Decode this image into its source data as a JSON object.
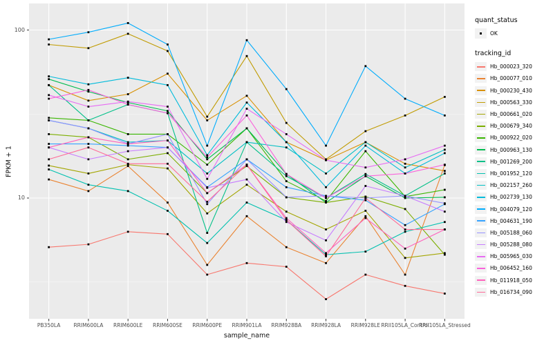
{
  "figure": {
    "background": "#FFFFFF",
    "panel_background": "#EBEBEB",
    "grid_color": "#FFFFFF",
    "tick_color": "#333333",
    "axis_text_color": "#4D4D4D",
    "point_color": "#000000"
  },
  "axes": {
    "x_label": "sample_name",
    "y_label": "FPKM + 1",
    "y_ticks": [
      "100",
      "10"
    ]
  },
  "legend": {
    "quant_status_title": "quant_status",
    "ok_label": "OK",
    "ok_marker": "black-square",
    "tracking_title": "tracking_id"
  },
  "chart_data": {
    "type": "line",
    "title": "",
    "xlabel": "sample_name",
    "ylabel": "FPKM + 1",
    "x_scale": "categorical",
    "y_scale": "log10",
    "ylim": [
      2.3,
      120
    ],
    "y_major": [
      100,
      10
    ],
    "y_minor": [
      31.62,
      3.162
    ],
    "grid": "on",
    "legend_position": "right",
    "marker": "black-square",
    "categories": [
      "PB350LA",
      "RRIM600LA",
      "RRIM600LE",
      "RRIM600SE",
      "RRIM600PE",
      "RRIM901LA",
      "RRIM928BA",
      "RRIM928LA",
      "RRIM928LE",
      "RRII105LA_Control",
      "RRII105LA_Stressed"
    ],
    "series": [
      {
        "name": "Hb_000023_320",
        "color": "#F8766D",
        "values": [
          5.1,
          5.3,
          6.3,
          6.1,
          3.5,
          4.1,
          3.9,
          2.5,
          3.5,
          3.0,
          2.7
        ]
      },
      {
        "name": "Hb_000077_010",
        "color": "#EA8331",
        "values": [
          12.9,
          11.0,
          15.5,
          9.4,
          4.0,
          7.8,
          5.1,
          4.1,
          7.8,
          3.5,
          15.7
        ]
      },
      {
        "name": "Hb_000230_430",
        "color": "#D89000",
        "values": [
          47,
          38,
          41.5,
          55,
          29,
          40.6,
          21.5,
          16.8,
          21.5,
          16,
          14.5
        ]
      },
      {
        "name": "Hb_000563_330",
        "color": "#C09B00",
        "values": [
          82,
          78,
          95,
          75,
          30.5,
          70,
          28,
          17,
          25,
          31,
          40
        ]
      },
      {
        "name": "Hb_000661_020",
        "color": "#A3A500",
        "values": [
          15.6,
          14,
          15.8,
          15,
          8.1,
          12,
          8.3,
          6.5,
          8.4,
          4.4,
          4.7
        ]
      },
      {
        "name": "Hb_000679_340",
        "color": "#7CAE00",
        "values": [
          24,
          23,
          17,
          18.5,
          10.7,
          15.5,
          10.1,
          9.4,
          10.2,
          8.6,
          4.6
        ]
      },
      {
        "name": "Hb_000922_020",
        "color": "#39B600",
        "values": [
          30,
          29,
          24,
          24,
          15.8,
          26,
          12.6,
          9.6,
          19,
          10.2,
          11.2
        ]
      },
      {
        "name": "Hb_000963_130",
        "color": "#00BB4E",
        "values": [
          51,
          43,
          37,
          33,
          17,
          26,
          13.9,
          9.4,
          13.5,
          10,
          10.1
        ]
      },
      {
        "name": "Hb_001269_200",
        "color": "#00C087",
        "values": [
          47,
          29,
          36,
          32,
          6.2,
          21.5,
          13.5,
          10,
          13.9,
          10.3,
          14
        ]
      },
      {
        "name": "Hb_001952_120",
        "color": "#00C0AF",
        "values": [
          14.8,
          12,
          11,
          8.4,
          5.4,
          9.4,
          7.4,
          4.6,
          4.8,
          6.3,
          7.2
        ]
      },
      {
        "name": "Hb_002157_260",
        "color": "#00BFC4",
        "values": [
          29,
          26,
          21.5,
          22,
          14,
          21.5,
          20,
          14,
          21.5,
          15.2,
          19.4
        ]
      },
      {
        "name": "Hb_002739_130",
        "color": "#00BBDB",
        "values": [
          53,
          47.5,
          52,
          47,
          18,
          37,
          21.5,
          11.6,
          20.5,
          14,
          18.5
        ]
      },
      {
        "name": "Hb_004079_120",
        "color": "#00ACFC",
        "values": [
          88,
          97,
          110,
          82,
          20.5,
          87,
          44.5,
          20.5,
          61,
          39,
          31
        ]
      },
      {
        "name": "Hb_004631_190",
        "color": "#35A2FF",
        "values": [
          21,
          21,
          20.5,
          20,
          11.6,
          17,
          11.6,
          10.3,
          9.7,
          6.9,
          9.2
        ]
      },
      {
        "name": "Hb_005188_060",
        "color": "#9590FF",
        "values": [
          29,
          26,
          21,
          24,
          9.2,
          17,
          10.1,
          10.3,
          10,
          10.3,
          9.3
        ]
      },
      {
        "name": "Hb_005288_080",
        "color": "#C77CFF",
        "values": [
          20,
          17,
          19,
          20,
          11.5,
          12.9,
          7.2,
          5.6,
          11.8,
          10.3,
          8.3
        ]
      },
      {
        "name": "Hb_005965_030",
        "color": "#E76BF3",
        "values": [
          41,
          35,
          37.5,
          35,
          13,
          34,
          24,
          16.8,
          15.2,
          17,
          20.5
        ]
      },
      {
        "name": "Hb_006452_160",
        "color": "#FA62DB",
        "values": [
          39,
          44,
          36,
          32,
          17.5,
          31,
          13.9,
          10,
          13.5,
          14,
          15.8
        ]
      },
      {
        "name": "Hb_011918_050",
        "color": "#FF62BC",
        "values": [
          20,
          23,
          21,
          22,
          10.7,
          15.8,
          7.6,
          4.7,
          7.6,
          5.0,
          6.5
        ]
      },
      {
        "name": "Hb_016734_090",
        "color": "#FF6A98",
        "values": [
          17,
          20,
          16,
          16,
          9.5,
          15.8,
          7.4,
          4.5,
          10,
          6.5,
          6.5
        ]
      }
    ]
  }
}
